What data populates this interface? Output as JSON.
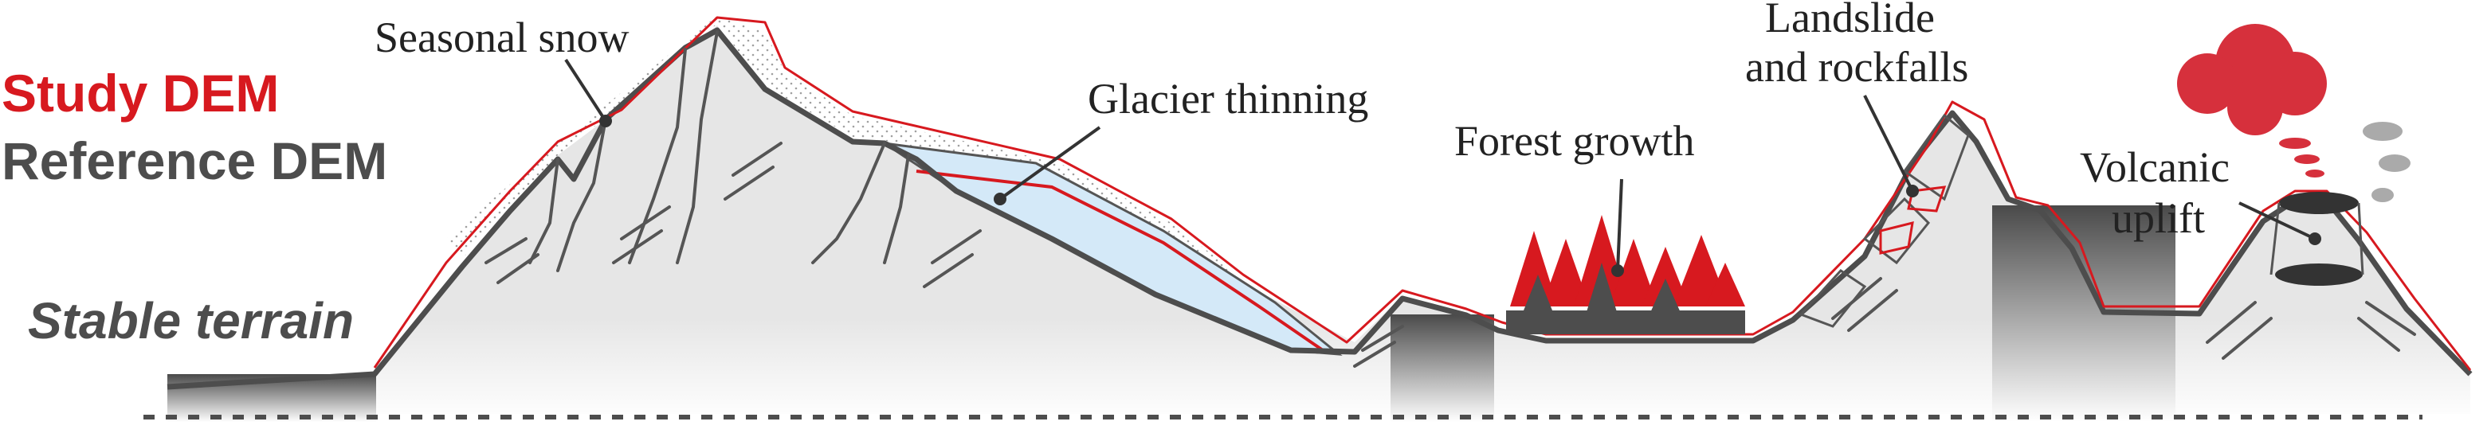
{
  "legend": {
    "study": "Study DEM",
    "reference": "Reference DEM",
    "stable": "Stable terrain"
  },
  "labels": {
    "snow": "Seasonal snow",
    "glacier": "Glacier thinning",
    "forest": "Forest growth",
    "landslide_1": "Landslide",
    "landslide_2": "and rockfalls",
    "volcano_1": "Volcanic",
    "volcano_2": "uplift"
  },
  "colors": {
    "study": "#d7191f",
    "reference": "#4d4d4d",
    "terrain": "#e6e6e6",
    "ice": "#d4e9f8",
    "forest_red": "#d7191f",
    "plume": "#d6303c"
  }
}
